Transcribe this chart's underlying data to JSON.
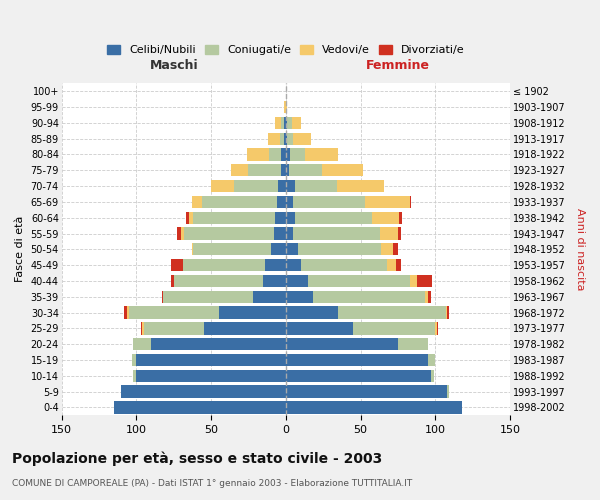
{
  "age_groups": [
    "0-4",
    "5-9",
    "10-14",
    "15-19",
    "20-24",
    "25-29",
    "30-34",
    "35-39",
    "40-44",
    "45-49",
    "50-54",
    "55-59",
    "60-64",
    "65-69",
    "70-74",
    "75-79",
    "80-84",
    "85-89",
    "90-94",
    "95-99",
    "100+"
  ],
  "birth_years": [
    "1998-2002",
    "1993-1997",
    "1988-1992",
    "1983-1987",
    "1978-1982",
    "1973-1977",
    "1968-1972",
    "1963-1967",
    "1958-1962",
    "1953-1957",
    "1948-1952",
    "1943-1947",
    "1938-1942",
    "1933-1937",
    "1928-1932",
    "1923-1927",
    "1918-1922",
    "1913-1917",
    "1908-1912",
    "1903-1907",
    "≤ 1902"
  ],
  "maschi": {
    "celibi": [
      115,
      110,
      100,
      100,
      90,
      55,
      45,
      22,
      15,
      14,
      10,
      8,
      7,
      6,
      5,
      3,
      3,
      1,
      1,
      0,
      0
    ],
    "coniugati": [
      0,
      0,
      2,
      3,
      12,
      40,
      60,
      60,
      60,
      55,
      52,
      60,
      55,
      50,
      30,
      22,
      8,
      3,
      2,
      0,
      0
    ],
    "vedovi": [
      0,
      0,
      0,
      0,
      0,
      1,
      1,
      0,
      0,
      0,
      1,
      2,
      3,
      7,
      15,
      12,
      15,
      8,
      4,
      1,
      0
    ],
    "divorziati": [
      0,
      0,
      0,
      0,
      0,
      1,
      2,
      1,
      2,
      8,
      0,
      3,
      2,
      0,
      0,
      0,
      0,
      0,
      0,
      0,
      0
    ]
  },
  "femmine": {
    "nubili": [
      118,
      108,
      97,
      95,
      75,
      45,
      35,
      18,
      15,
      10,
      8,
      5,
      6,
      5,
      6,
      2,
      3,
      1,
      1,
      0,
      0
    ],
    "coniugate": [
      0,
      1,
      2,
      5,
      20,
      55,
      72,
      75,
      68,
      58,
      56,
      58,
      52,
      48,
      28,
      22,
      10,
      4,
      3,
      0,
      0
    ],
    "vedove": [
      0,
      0,
      0,
      0,
      0,
      1,
      1,
      2,
      5,
      6,
      8,
      12,
      18,
      30,
      32,
      28,
      22,
      12,
      6,
      1,
      0
    ],
    "divorziate": [
      0,
      0,
      0,
      0,
      0,
      1,
      1,
      2,
      10,
      3,
      3,
      2,
      2,
      1,
      0,
      0,
      0,
      0,
      0,
      0,
      0
    ]
  },
  "colors": {
    "celibi": "#3a6ea5",
    "coniugati": "#b5c9a0",
    "vedovi": "#f5c96a",
    "divorziati": "#d03020"
  },
  "xlim": 150,
  "title": "Popolazione per età, sesso e stato civile - 2003",
  "subtitle": "COMUNE DI CAMPOREALE (PA) - Dati ISTAT 1° gennaio 2003 - Elaborazione TUTTITALIA.IT",
  "ylabel_left": "Fasce di età",
  "ylabel_right": "Anni di nascita",
  "xlabel_left": "Maschi",
  "xlabel_right": "Femmine",
  "bg_color": "#f0f0f0",
  "plot_bg": "#ffffff"
}
